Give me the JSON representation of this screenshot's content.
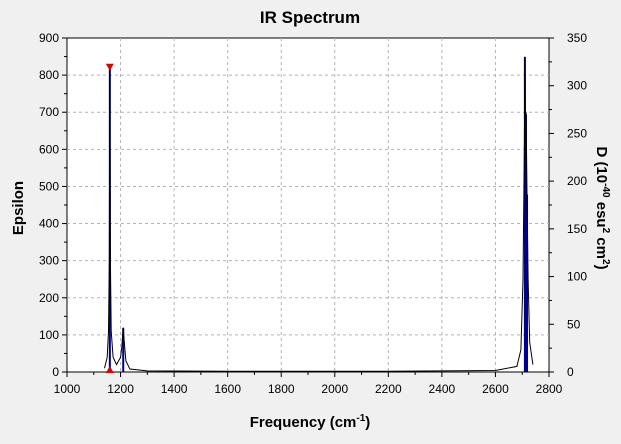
{
  "chart_data": {
    "type": "line",
    "title": "IR Spectrum",
    "xlabel": "Frequency (cm",
    "xlabel_sup": "-1",
    "xlabel_close": ")",
    "ylabel": "Epsilon",
    "y2label_parts": [
      "D (10",
      "-40",
      " esu",
      "2",
      " cm",
      "2",
      ")"
    ],
    "xlim": [
      1000,
      2800
    ],
    "ylim": [
      0,
      900
    ],
    "y2lim": [
      0,
      350
    ],
    "x_ticks": [
      1000,
      1200,
      1400,
      1600,
      1800,
      2000,
      2200,
      2400,
      2600,
      2800
    ],
    "y_ticks": [
      0,
      100,
      200,
      300,
      400,
      500,
      600,
      700,
      800,
      900
    ],
    "y2_ticks": [
      0,
      50,
      100,
      150,
      200,
      250,
      300,
      350
    ],
    "grid": true,
    "colors": {
      "spectrum": "#000000",
      "sticks": "#00008b",
      "marker": "#dd0000",
      "grid": "#b4b4b4"
    },
    "peaks": [
      {
        "x": 1160,
        "epsilon": 820,
        "d": 318
      },
      {
        "x": 1210,
        "epsilon": 120,
        "d": 46
      },
      {
        "x": 2710,
        "epsilon": 850,
        "d": 330
      },
      {
        "x": 2714,
        "epsilon": 700,
        "d": 270
      },
      {
        "x": 2718,
        "epsilon": 480,
        "d": 186
      }
    ],
    "series": [
      {
        "values": [
          [
            1140,
            10
          ],
          [
            1150,
            40
          ],
          [
            1155,
            110
          ],
          [
            1158,
            300
          ],
          [
            1160,
            820
          ],
          [
            1162,
            300
          ],
          [
            1165,
            110
          ],
          [
            1172,
            40
          ],
          [
            1185,
            20
          ],
          [
            1200,
            40
          ],
          [
            1205,
            70
          ],
          [
            1210,
            120
          ],
          [
            1215,
            70
          ],
          [
            1220,
            30
          ],
          [
            1235,
            8
          ],
          [
            1300,
            3
          ],
          [
            1600,
            2
          ],
          [
            2200,
            2
          ],
          [
            2600,
            4
          ],
          [
            2680,
            15
          ],
          [
            2695,
            60
          ],
          [
            2703,
            250
          ],
          [
            2708,
            620
          ],
          [
            2710,
            850
          ],
          [
            2712,
            700
          ],
          [
            2714,
            700
          ],
          [
            2716,
            600
          ],
          [
            2718,
            480
          ],
          [
            2722,
            250
          ],
          [
            2728,
            80
          ],
          [
            2740,
            20
          ]
        ]
      }
    ],
    "markers": [
      {
        "x": 1160,
        "epsilon": 820
      }
    ]
  }
}
